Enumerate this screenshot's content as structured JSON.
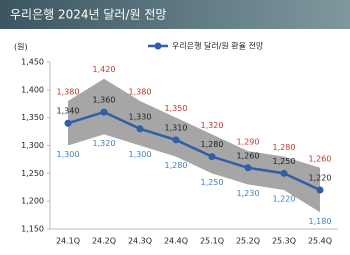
{
  "chart_data": {
    "type": "band-line",
    "title": "우리은행 2024년 달러/원 전망",
    "y_label": "(원)",
    "categories": [
      "24.1Q",
      "24.2Q",
      "24.3Q",
      "24.4Q",
      "25.1Q",
      "25.2Q",
      "25.3Q",
      "25.4Q"
    ],
    "series": [
      {
        "name": "우리은행 달러/원 환율 전망",
        "color": "#2f5fa7",
        "values": [
          1340,
          1360,
          1330,
          1310,
          1280,
          1260,
          1250,
          1220
        ],
        "value_labels": [
          "1,340",
          "1,360",
          "1,330",
          "1,310",
          "1,280",
          "1,260",
          "1,250",
          "1,220"
        ]
      }
    ],
    "upper": {
      "color": "#c0392b",
      "values": [
        1380,
        1420,
        1380,
        1350,
        1320,
        1290,
        1280,
        1260
      ],
      "value_labels": [
        "1,380",
        "1,420",
        "1,380",
        "1,350",
        "1,320",
        "1,290",
        "1,280",
        "1,260"
      ]
    },
    "lower": {
      "color": "#3f7fc4",
      "values": [
        1300,
        1320,
        1300,
        1280,
        1250,
        1230,
        1220,
        1180
      ],
      "value_labels": [
        "1,300",
        "1,320",
        "1,300",
        "1,280",
        "1,250",
        "1,230",
        "1,220",
        "1,180"
      ]
    },
    "band_color": "#a6a6a6",
    "ylim": [
      1150,
      1450
    ],
    "yticks": [
      {
        "value": 1150,
        "label": "1,150"
      },
      {
        "value": 1200,
        "label": "1,200"
      },
      {
        "value": 1250,
        "label": "1,250"
      },
      {
        "value": 1300,
        "label": "1,300"
      },
      {
        "value": 1350,
        "label": "1,350"
      },
      {
        "value": 1400,
        "label": "1,400"
      },
      {
        "value": 1450,
        "label": "1,450"
      }
    ]
  }
}
